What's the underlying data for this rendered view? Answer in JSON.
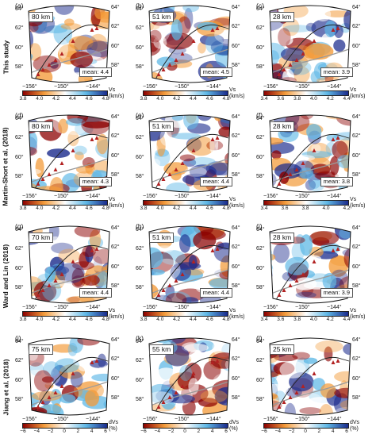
{
  "row_labels": [
    "This study",
    "Martin-Short et al. (2018)",
    "Ward and Lin (2018)",
    "Jiang et al. (2018)"
  ],
  "lat_labels_left": [
    "64°",
    "62°",
    "60°",
    "58°"
  ],
  "lat_labels_right": [
    "64°",
    "62°",
    "60°",
    "58°"
  ],
  "lon_labels": [
    "−156°",
    "−150°",
    "−144°"
  ],
  "units": {
    "vs": "Vs (km/s)",
    "dvs": "dVs (%)"
  },
  "colorbars": {
    "a": [
      "3.8",
      "4.0",
      "4.2",
      "4.4",
      "4.6",
      "4.8"
    ],
    "b": [
      "3.8",
      "4.0",
      "4.2",
      "4.4",
      "4.6",
      "4.8"
    ],
    "c": [
      "3.4",
      "3.6",
      "3.8",
      "4.0",
      "4.2",
      "4.4"
    ],
    "d": [
      "3.8",
      "4.0",
      "4.2",
      "4.4",
      "4.6",
      "4.8"
    ],
    "e": [
      "3.8",
      "4.0",
      "4.2",
      "4.4",
      "4.6",
      "4.8"
    ],
    "f": [
      "3.4",
      "3.6",
      "3.8",
      "4.0",
      "4.2"
    ],
    "g": [
      "3.8",
      "4.0",
      "4.2",
      "4.4",
      "4.6",
      "4.8"
    ],
    "h": [
      "3.8",
      "4.0",
      "4.2",
      "4.4",
      "4.6",
      "4.8"
    ],
    "i": [
      "3.4",
      "3.6",
      "3.8",
      "4.0",
      "4.2",
      "4.4"
    ],
    "j": [
      "−6",
      "−4",
      "−2",
      "0",
      "2",
      "4",
      "6"
    ],
    "k": [
      "−6",
      "−4",
      "−2",
      "0",
      "2",
      "4",
      "6"
    ],
    "l": [
      "−6",
      "−4",
      "−2",
      "0",
      "2",
      "4",
      "6"
    ]
  },
  "panels": [
    {
      "id": "a",
      "label": "(a)",
      "depth": "80 km",
      "mean": "mean: 4.4",
      "scale": "vs",
      "seed": 3
    },
    {
      "id": "b",
      "label": "(b)",
      "depth": "51 km",
      "mean": "mean: 4.5",
      "scale": "vs",
      "seed": 7
    },
    {
      "id": "c",
      "label": "(c)",
      "depth": "28 km",
      "mean": "mean: 3.9",
      "scale": "vs",
      "seed": 11
    },
    {
      "id": "d",
      "label": "(d)",
      "depth": "80 km",
      "mean": "mean: 4.3",
      "scale": "vs",
      "seed": 13
    },
    {
      "id": "e",
      "label": "(e)",
      "depth": "51 km",
      "mean": "mean: 4.4",
      "scale": "vs",
      "seed": 17
    },
    {
      "id": "f",
      "label": "(f)",
      "depth": "28 km",
      "mean": "mean: 3.8",
      "scale": "vs",
      "seed": 19
    },
    {
      "id": "g",
      "label": "(g)",
      "depth": "70 km",
      "mean": "mean: 4.4",
      "scale": "vs",
      "seed": 23
    },
    {
      "id": "h",
      "label": "(h)",
      "depth": "51 km",
      "mean": "mean: 4.4",
      "scale": "vs",
      "seed": 29
    },
    {
      "id": "i",
      "label": "(i)",
      "depth": "28 km",
      "mean": "mean: 3.9",
      "scale": "vs",
      "seed": 31
    },
    {
      "id": "j",
      "label": "(j)",
      "depth": "75 km",
      "mean": "",
      "scale": "dvs",
      "seed": 37
    },
    {
      "id": "k",
      "label": "(k)",
      "depth": "55 km",
      "mean": "",
      "scale": "dvs",
      "seed": 41
    },
    {
      "id": "l",
      "label": "(l)",
      "depth": "25 km",
      "mean": "",
      "scale": "dvs",
      "seed": 43
    }
  ],
  "colors": {
    "low": "#8b0000",
    "mid_low": "#f39b3a",
    "mid": "#ffffff",
    "mid_high": "#5fb8e6",
    "high": "#1a2a8c",
    "volcano": "#b22222",
    "coast": "#9a9a9a"
  }
}
